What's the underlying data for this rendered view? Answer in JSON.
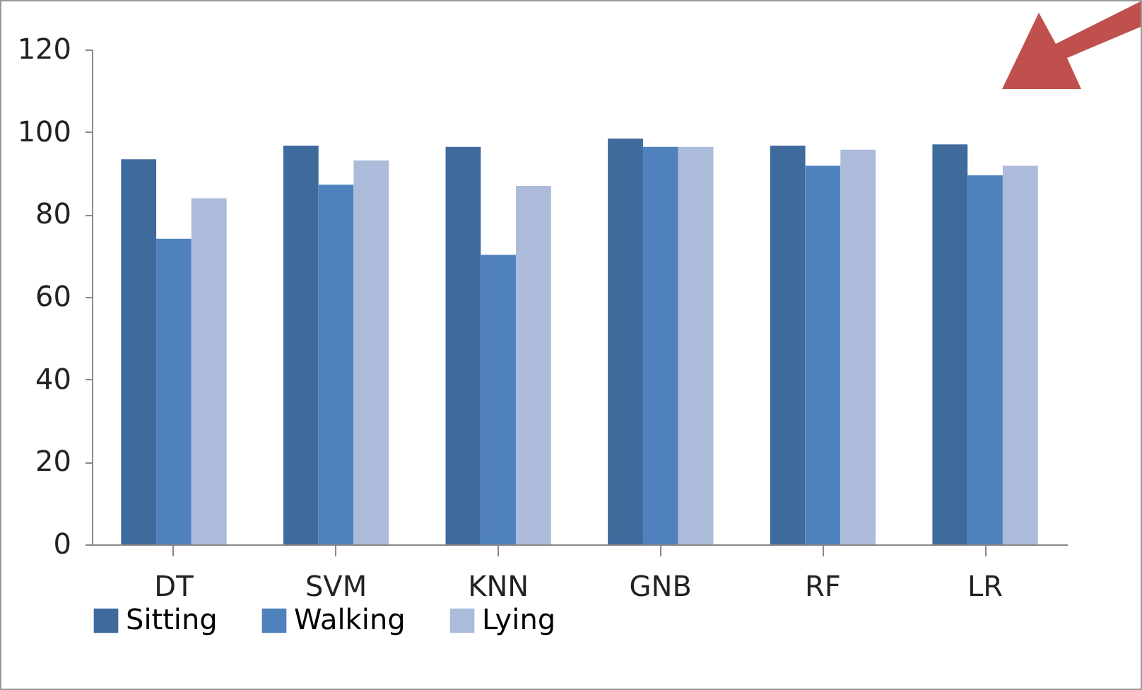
{
  "chart_data": {
    "type": "bar",
    "categories": [
      "DT",
      "SVM",
      "KNN",
      "GNB",
      "RF",
      "LR"
    ],
    "series": [
      {
        "name": "Sitting",
        "color": "#3f6a9c",
        "values": [
          93.4,
          96.7,
          96.4,
          98.4,
          96.7,
          97
        ]
      },
      {
        "name": "Walking",
        "color": "#4f81bd",
        "values": [
          74.1,
          87.2,
          70.2,
          96.4,
          91.8,
          89.5
        ]
      },
      {
        "name": "Lying",
        "color": "#abbbd9",
        "values": [
          83.9,
          93.1,
          86.9,
          96.4,
          95.7,
          91.8
        ]
      }
    ],
    "ylim": [
      0,
      120
    ],
    "yticks": [
      0,
      20,
      40,
      60,
      80,
      100,
      120
    ],
    "grid": false,
    "legend": "bottom"
  }
}
